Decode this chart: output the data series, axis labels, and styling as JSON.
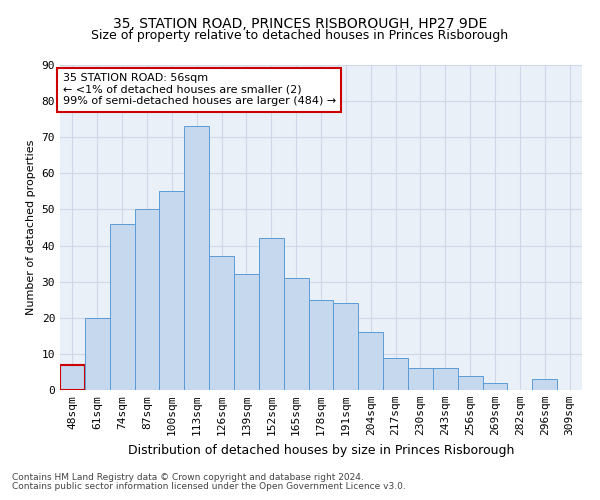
{
  "title1": "35, STATION ROAD, PRINCES RISBOROUGH, HP27 9DE",
  "title2": "Size of property relative to detached houses in Princes Risborough",
  "xlabel": "Distribution of detached houses by size in Princes Risborough",
  "ylabel": "Number of detached properties",
  "footnote1": "Contains HM Land Registry data © Crown copyright and database right 2024.",
  "footnote2": "Contains public sector information licensed under the Open Government Licence v3.0.",
  "categories": [
    "48sqm",
    "61sqm",
    "74sqm",
    "87sqm",
    "100sqm",
    "113sqm",
    "126sqm",
    "139sqm",
    "152sqm",
    "165sqm",
    "178sqm",
    "191sqm",
    "204sqm",
    "217sqm",
    "230sqm",
    "243sqm",
    "256sqm",
    "269sqm",
    "282sqm",
    "296sqm",
    "309sqm"
  ],
  "values": [
    7,
    20,
    46,
    50,
    55,
    73,
    37,
    32,
    42,
    31,
    25,
    24,
    16,
    9,
    6,
    6,
    4,
    2,
    0,
    3,
    0
  ],
  "bar_color": "#c5d8ed",
  "bar_edge_color": "#5b9bd5",
  "highlight_bar_index": 0,
  "highlight_bar_edge_color": "#cc0000",
  "annotation_text": "35 STATION ROAD: 56sqm\n← <1% of detached houses are smaller (2)\n99% of semi-detached houses are larger (484) →",
  "ylim": [
    0,
    90
  ],
  "yticks": [
    0,
    10,
    20,
    30,
    40,
    50,
    60,
    70,
    80,
    90
  ],
  "grid_color": "#d0d8e8",
  "background_color": "#eaf0f8",
  "title1_fontsize": 10,
  "title2_fontsize": 9,
  "xlabel_fontsize": 9,
  "ylabel_fontsize": 8,
  "tick_fontsize": 8,
  "annotation_fontsize": 8,
  "footnote_fontsize": 6.5
}
